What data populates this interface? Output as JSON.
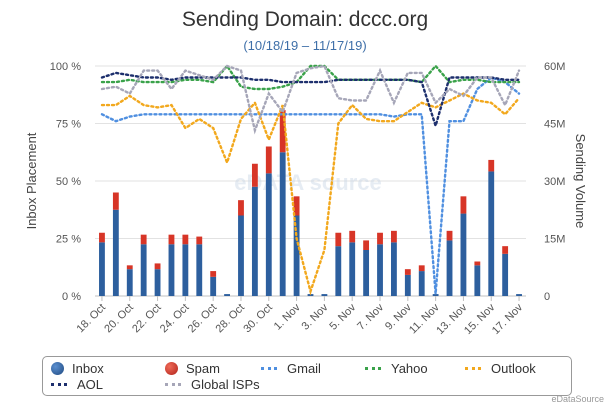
{
  "chart_data": {
    "type": "bar",
    "title": "Sending Domain: dccc.org",
    "subtitle": "(10/18/19 – 11/17/19)",
    "ylabel": "Inbox Placement",
    "y2label": "Sending Volume",
    "ylim": [
      0,
      100
    ],
    "y2lim": [
      0,
      60
    ],
    "y_ticks": [
      "0 %",
      "25 %",
      "50 %",
      "75 %",
      "100 %"
    ],
    "y2_ticks": [
      "0",
      "15M",
      "30M",
      "45M",
      "60M"
    ],
    "x_tick_labels": [
      "18. Oct",
      "20. Oct",
      "22. Oct",
      "24. Oct",
      "26. Oct",
      "28. Oct",
      "30. Oct",
      "1. Nov",
      "3. Nov",
      "5. Nov",
      "7. Nov",
      "9. Nov",
      "11. Nov",
      "13. Nov",
      "15. Nov",
      "17. Nov"
    ],
    "dates": [
      "10/18",
      "10/19",
      "10/20",
      "10/21",
      "10/22",
      "10/23",
      "10/24",
      "10/25",
      "10/26",
      "10/27",
      "10/28",
      "10/29",
      "10/30",
      "10/31",
      "11/1",
      "11/2",
      "11/3",
      "11/4",
      "11/5",
      "11/6",
      "11/7",
      "11/8",
      "11/9",
      "11/10",
      "11/11",
      "11/12",
      "11/13",
      "11/14",
      "11/15",
      "11/16",
      "11/17"
    ],
    "series": [
      {
        "name": "Inbox",
        "axis": "volume",
        "kind": "bar",
        "color": "#2d5f9e",
        "values": [
          14,
          22.5,
          7,
          13.5,
          7,
          13.5,
          13.5,
          13.5,
          5,
          0.5,
          21,
          28.5,
          32,
          37.5,
          21,
          0.5,
          0.5,
          13,
          14,
          12,
          13.5,
          14,
          5.5,
          6.5,
          0.5,
          14.5,
          21.5,
          8,
          32.5,
          11,
          0.5
        ]
      },
      {
        "name": "Spam",
        "axis": "volume",
        "kind": "bar",
        "color": "#d73527",
        "values": [
          2.5,
          4.5,
          1,
          2.5,
          1.5,
          2.5,
          2.5,
          2,
          1.5,
          0,
          4,
          6,
          7,
          11,
          5,
          0,
          0,
          3.5,
          3,
          2.5,
          3,
          3,
          1.5,
          1.5,
          0,
          2.5,
          4.5,
          1,
          3,
          2,
          0
        ]
      },
      {
        "name": "Gmail",
        "axis": "percent",
        "kind": "line",
        "color": "#4f8fe0",
        "values": [
          79,
          76,
          78,
          79,
          79,
          79,
          79,
          79,
          79,
          79,
          79,
          79,
          79,
          79,
          79,
          79,
          79,
          79,
          79,
          79,
          79,
          78,
          79,
          79,
          1,
          76,
          76,
          90,
          95,
          93,
          88
        ]
      },
      {
        "name": "Yahoo",
        "axis": "percent",
        "kind": "line",
        "color": "#3aa24a",
        "values": [
          93,
          93,
          94,
          93,
          93,
          93,
          94,
          94,
          93,
          100,
          91,
          90,
          90,
          91,
          93,
          100,
          100,
          94,
          94,
          94,
          94,
          94,
          94,
          93,
          100,
          93,
          94,
          94,
          93,
          93,
          93
        ]
      },
      {
        "name": "Outlook",
        "axis": "percent",
        "kind": "line",
        "color": "#f2a81d",
        "values": [
          83,
          83,
          87,
          83,
          82,
          83,
          73,
          77,
          73,
          58,
          77,
          84,
          68,
          83,
          25,
          2,
          20,
          75,
          83,
          77,
          76,
          76,
          80,
          84,
          82,
          85,
          88,
          85,
          84,
          79,
          86
        ]
      },
      {
        "name": "AOL",
        "axis": "percent",
        "kind": "line",
        "color": "#1d2f6d",
        "values": [
          95,
          97,
          96,
          95,
          95,
          94,
          95,
          95,
          95,
          95,
          95,
          94,
          94,
          93,
          93,
          93,
          93,
          94,
          94,
          94,
          94,
          94,
          94,
          93,
          74,
          95,
          95,
          95,
          95,
          94,
          94
        ]
      },
      {
        "name": "Global ISPs",
        "axis": "percent",
        "kind": "line",
        "color": "#a6a6b8",
        "values": [
          90,
          91,
          88,
          98,
          98,
          90,
          98,
          96,
          94,
          100,
          98,
          72,
          88,
          80,
          97,
          99,
          100,
          86,
          85,
          85,
          98,
          84,
          97,
          97,
          84,
          90,
          87,
          95,
          95,
          83,
          98
        ]
      }
    ],
    "grid": true,
    "legend_position": "bottom"
  },
  "legend": {
    "inbox": "Inbox",
    "spam": "Spam",
    "gmail": "Gmail",
    "yahoo": "Yahoo",
    "outlook": "Outlook",
    "aol": "AOL",
    "global": "Global ISPs"
  },
  "watermark": "eDATA source",
  "credit": "eDataSource"
}
